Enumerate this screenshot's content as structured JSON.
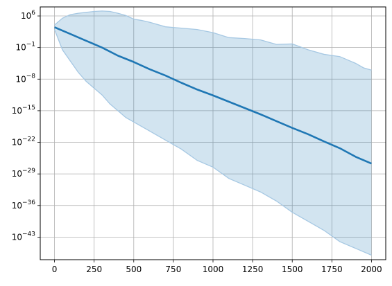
{
  "chart_data": {
    "type": "line",
    "title": "",
    "xlabel": "",
    "ylabel": "",
    "grid": true,
    "y_scale": "log",
    "xlim": [
      -90,
      2090
    ],
    "ylim_exponent": [
      -48,
      8
    ],
    "x_ticks": [
      0,
      250,
      500,
      750,
      1000,
      1250,
      1500,
      1750,
      2000
    ],
    "y_tick_exponents": [
      6,
      -1,
      -8,
      -15,
      -22,
      -29,
      -36,
      -43
    ],
    "colors": {
      "line": "#1f77b4",
      "band_fill": "#1f77b4",
      "band_edge": "#a6c8e3"
    },
    "series": [
      {
        "role": "median",
        "x": [
          0,
          100,
          200,
          300,
          400,
          500,
          600,
          700,
          800,
          900,
          1000,
          1100,
          1200,
          1300,
          1400,
          1500,
          1600,
          1700,
          1800,
          1900,
          2000
        ],
        "log10_y": [
          3.5,
          2.0,
          0.5,
          -1.0,
          -2.8,
          -4.2,
          -5.8,
          -7.2,
          -8.8,
          -10.3,
          -11.6,
          -13.0,
          -14.4,
          -15.8,
          -17.3,
          -18.8,
          -20.2,
          -21.8,
          -23.3,
          -25.2,
          -26.7
        ]
      },
      {
        "role": "upper",
        "x": [
          0,
          50,
          100,
          150,
          200,
          250,
          300,
          350,
          400,
          450,
          500,
          550,
          600,
          700,
          800,
          900,
          1000,
          1100,
          1200,
          1300,
          1400,
          1500,
          1600,
          1700,
          1800,
          1900,
          1950,
          2000
        ],
        "log10_y": [
          4.0,
          5.5,
          6.3,
          6.6,
          6.8,
          7.0,
          7.1,
          7.0,
          6.6,
          6.1,
          5.3,
          5.0,
          4.6,
          3.6,
          3.3,
          3.0,
          2.3,
          1.2,
          1.0,
          0.7,
          -0.3,
          -0.2,
          -1.5,
          -2.5,
          -3.0,
          -4.5,
          -5.5,
          -6.0
        ]
      },
      {
        "role": "lower",
        "x": [
          0,
          50,
          100,
          150,
          200,
          250,
          300,
          350,
          400,
          450,
          500,
          550,
          600,
          700,
          800,
          900,
          1000,
          1100,
          1200,
          1300,
          1400,
          1500,
          1600,
          1700,
          1800,
          1900,
          2000
        ],
        "log10_y": [
          3.0,
          -1.5,
          -4.0,
          -6.5,
          -8.5,
          -10.0,
          -11.5,
          -13.5,
          -15.0,
          -16.5,
          -17.5,
          -18.5,
          -19.5,
          -21.5,
          -23.5,
          -26.0,
          -27.5,
          -30.0,
          -31.5,
          -33.0,
          -35.0,
          -37.5,
          -39.5,
          -41.5,
          -44.0,
          -45.5,
          -47.0
        ]
      }
    ]
  }
}
